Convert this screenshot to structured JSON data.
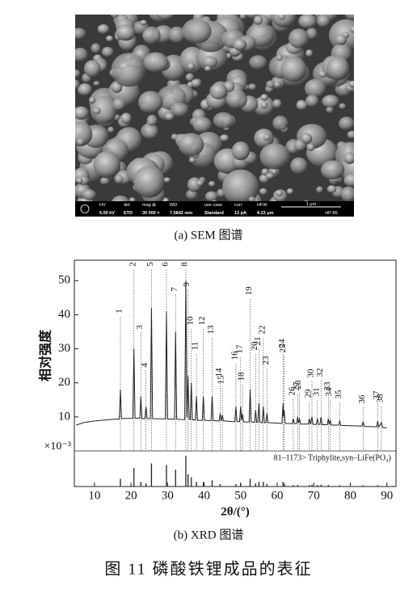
{
  "sem": {
    "info": [
      {
        "label": "HV",
        "value": "5.00 kV"
      },
      {
        "label": "det",
        "value": "ETD"
      },
      {
        "label": "mag ⊞",
        "value": "30 000 ×"
      },
      {
        "label": "WD",
        "value": "7.5842 mm"
      },
      {
        "label": "use case",
        "value": "Standard"
      },
      {
        "label": "curr",
        "value": "13 pA"
      },
      {
        "label": "HFW",
        "value": "4.23 μm"
      }
    ],
    "scale_bar": "1 μm",
    "sample_id": "HP-85"
  },
  "caption_a": "(a) SEM 图谱",
  "chart_data": {
    "type": "line",
    "y_label": "相对强度",
    "y_unit": "×10⁻³",
    "x_label": "2θ/(°)",
    "color": "#222222",
    "x": [
      5,
      7,
      10,
      14,
      16.8,
      17.1,
      17.4,
      20.5,
      20.8,
      21.1,
      22.4,
      22.7,
      23.0,
      23.8,
      24.1,
      24.4,
      25.3,
      25.6,
      25.9,
      29.4,
      29.7,
      30.0,
      31.9,
      32.2,
      32.5,
      34.7,
      35.0,
      35.3,
      35.6,
      35.9,
      36.2,
      36.5,
      36.8,
      37.6,
      37.9,
      38.2,
      39.5,
      39.8,
      40.1,
      41.9,
      42.2,
      42.5,
      44.1,
      44.4,
      44.7,
      45.0,
      45.3,
      48.4,
      48.7,
      49.0,
      49.7,
      50.0,
      50.25,
      50.5,
      50.8,
      52.3,
      52.6,
      52.9,
      53.8,
      54.1,
      54.4,
      54.7,
      55.0,
      55.3,
      55.9,
      56.2,
      56.5,
      56.9,
      57.2,
      57.5,
      61.3,
      61.6,
      61.75,
      61.9,
      62.2,
      64.1,
      64.4,
      64.7,
      65.3,
      65.6,
      65.85,
      66.1,
      66.4,
      68.5,
      68.8,
      69.1,
      69.5,
      69.8,
      70.7,
      71.0,
      71.3,
      71.7,
      72.0,
      72.3,
      73.7,
      74.0,
      74.25,
      74.5,
      74.8,
      76.8,
      77.1,
      77.4,
      80,
      83.2,
      83.5,
      83.8,
      87.2,
      87.5,
      87.8,
      88.5,
      88.8,
      90
    ],
    "values": [
      7.6,
      8.3,
      8.8,
      9.2,
      9.4,
      18,
      9.5,
      9.6,
      30,
      9.6,
      9.6,
      16,
      9.5,
      9.5,
      13,
      9.5,
      9.5,
      42,
      9.5,
      9.4,
      41,
      9.4,
      9.3,
      35,
      9.3,
      9.2,
      50,
      9.8,
      22,
      9.3,
      9.2,
      20,
      9.1,
      9.1,
      16,
      9.0,
      9.0,
      16,
      9.0,
      8.9,
      16,
      8.9,
      8.8,
      11,
      8.8,
      10.5,
      8.8,
      8.6,
      13,
      8.6,
      8.6,
      13,
      9,
      11,
      8.5,
      8.5,
      18,
      8.5,
      8.4,
      12,
      8.4,
      8.4,
      14,
      8.4,
      8.3,
      13,
      8.3,
      8.3,
      11,
      8.3,
      8.1,
      14,
      10,
      12,
      8.1,
      8.0,
      9.5,
      8.0,
      8.0,
      10,
      8.2,
      9.5,
      7.9,
      7.9,
      9.5,
      7.8,
      10,
      7.8,
      7.8,
      9.5,
      7.8,
      7.8,
      10,
      7.7,
      7.7,
      9.5,
      7.8,
      9,
      7.6,
      7.6,
      8.8,
      7.5,
      7.4,
      7.3,
      8.6,
      7.2,
      7.1,
      8.8,
      7.0,
      8.3,
      6.9,
      6.8
    ],
    "xlim": [
      4.5,
      92.5
    ],
    "xticks": [
      10,
      20,
      30,
      40,
      50,
      60,
      70,
      80,
      90
    ],
    "ylim": [
      0,
      56
    ],
    "yticks": [
      10,
      20,
      30,
      40,
      50
    ],
    "peak_labels": [
      {
        "label": "1",
        "x": 17.1
      },
      {
        "label": "2",
        "x": 20.8
      },
      {
        "label": "3",
        "x": 22.7
      },
      {
        "label": "4",
        "x": 24.1
      },
      {
        "label": "5",
        "x": 25.6
      },
      {
        "label": "6",
        "x": 29.7
      },
      {
        "label": "7",
        "x": 32.2
      },
      {
        "label": "8",
        "x": 35.0
      },
      {
        "label": "9",
        "x": 35.6
      },
      {
        "label": "10",
        "x": 36.5
      },
      {
        "label": "11",
        "x": 37.9
      },
      {
        "label": "12",
        "x": 39.8
      },
      {
        "label": "13",
        "x": 42.2
      },
      {
        "label": "14",
        "x": 44.4
      },
      {
        "label": "15",
        "x": 45.0
      },
      {
        "label": "16",
        "x": 48.7
      },
      {
        "label": "17",
        "x": 50.0
      },
      {
        "label": "18",
        "x": 50.5
      },
      {
        "label": "19",
        "x": 52.6
      },
      {
        "label": "20",
        "x": 54.1
      },
      {
        "label": "21",
        "x": 55.0
      },
      {
        "label": "22",
        "x": 56.2
      },
      {
        "label": "23",
        "x": 57.2
      },
      {
        "label": "24",
        "x": 61.6
      },
      {
        "label": "25",
        "x": 61.9
      },
      {
        "label": "26",
        "x": 64.4
      },
      {
        "label": "27",
        "x": 65.6
      },
      {
        "label": "28",
        "x": 66.1
      },
      {
        "label": "29",
        "x": 68.8
      },
      {
        "label": "30",
        "x": 69.5
      },
      {
        "label": "31",
        "x": 71.0
      },
      {
        "label": "32",
        "x": 72.0
      },
      {
        "label": "33",
        "x": 74.0
      },
      {
        "label": "34",
        "x": 74.5
      },
      {
        "label": "35",
        "x": 77.1
      },
      {
        "label": "36",
        "x": 83.5
      },
      {
        "label": "37",
        "x": 87.5
      },
      {
        "label": "38",
        "x": 88.5
      }
    ],
    "reference": {
      "label": "81–1173> Triphylite,syn–LiFe(PO₄)",
      "color": "#222222",
      "x": [
        17.1,
        20.8,
        22.7,
        24.1,
        25.6,
        29.7,
        32.2,
        35.0,
        35.6,
        36.5,
        37.9,
        39.8,
        42.2,
        44.4,
        48.7,
        50.0,
        52.6,
        54.1,
        55.0,
        56.2,
        57.2,
        61.6,
        62.0,
        64.4,
        65.6,
        68.8,
        69.5,
        71.0,
        72.0,
        74.0,
        77.1,
        83.5,
        87.5
      ],
      "values": [
        25,
        60,
        15,
        10,
        75,
        70,
        55,
        100,
        40,
        30,
        15,
        15,
        20,
        8,
        8,
        10,
        25,
        10,
        15,
        15,
        8,
        15,
        10,
        5,
        5,
        5,
        6,
        5,
        6,
        5,
        4,
        4,
        4
      ]
    }
  },
  "caption_b": "(b) XRD 图谱",
  "figure_caption": "图 11   磷酸铁锂成品的表征"
}
